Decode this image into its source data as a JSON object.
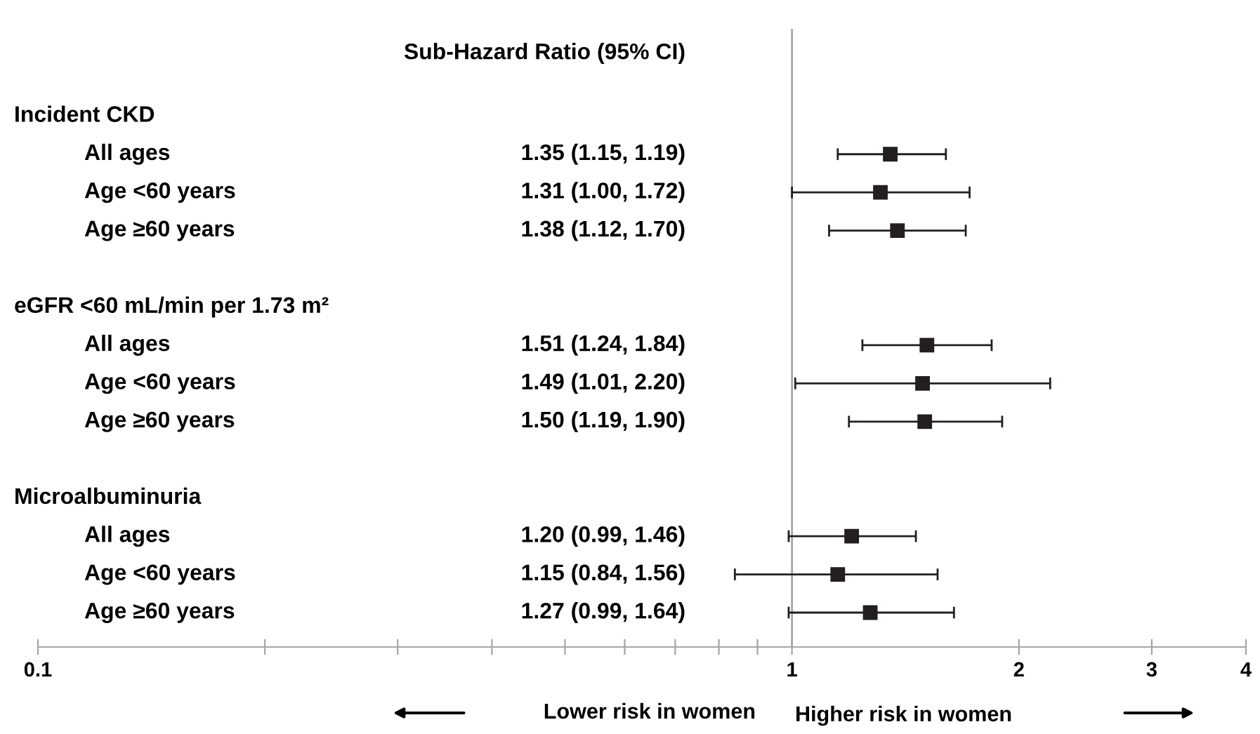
{
  "chart_data": {
    "type": "scatter",
    "orientation": "horizontal",
    "title": "Sub-Hazard Ratio (95% CI)",
    "categories": [
      "Incident CKD",
      "All ages",
      "Age <60 years",
      "Age ≥60 years",
      null,
      "eGFR <60 mL/min per 1.73 m²",
      "All ages",
      "Age <60 years",
      "Age ≥60 years",
      null,
      "Microalbuminuria",
      "All ages",
      "Age <60 years",
      "Age ≥60 years"
    ],
    "values": [
      null,
      1.35,
      1.31,
      1.38,
      null,
      null,
      1.51,
      1.49,
      1.5,
      null,
      null,
      1.2,
      1.15,
      1.27
    ],
    "errors": [
      null,
      [
        1.15,
        1.6
      ],
      [
        1.0,
        1.72
      ],
      [
        1.12,
        1.7
      ],
      null,
      null,
      [
        1.24,
        1.84
      ],
      [
        1.01,
        2.2
      ],
      [
        1.19,
        1.9
      ],
      null,
      null,
      [
        0.99,
        1.46
      ],
      [
        0.84,
        1.56
      ],
      [
        0.99,
        1.64
      ]
    ],
    "color": "#231f20",
    "marker": "square",
    "log": "x",
    "xlim": [
      0.1,
      4
    ],
    "xticks": [
      0.1,
      {
        "value": 0.2,
        "label": null
      },
      {
        "value": 0.3,
        "label": null
      },
      {
        "value": 0.4,
        "label": null
      },
      {
        "value": 0.5,
        "label": null
      },
      {
        "value": 0.6,
        "label": null
      },
      {
        "value": 0.7,
        "label": null
      },
      {
        "value": 0.8,
        "label": null
      },
      {
        "value": 0.9,
        "label": null
      },
      1,
      2,
      3,
      4
    ],
    "ref_lines": [
      {
        "axis": "x",
        "value": 1,
        "label": null,
        "color": "#a6a6a6"
      }
    ],
    "annotations": [
      "1.35 (1.15, 1.19)",
      "1.31 (1.00, 1.72)",
      "1.38 (1.12, 1.70)",
      "1.51 (1.24, 1.84)",
      "1.49 (1.01, 2.20)",
      "1.50 (1.19, 1.90)",
      "1.20 (0.99, 1.46)",
      "1.15 (0.84, 1.56)",
      "1.27 (0.99, 1.64)",
      "Lower risk in women",
      "Higher risk in women"
    ],
    "grid": false,
    "legend": false
  }
}
